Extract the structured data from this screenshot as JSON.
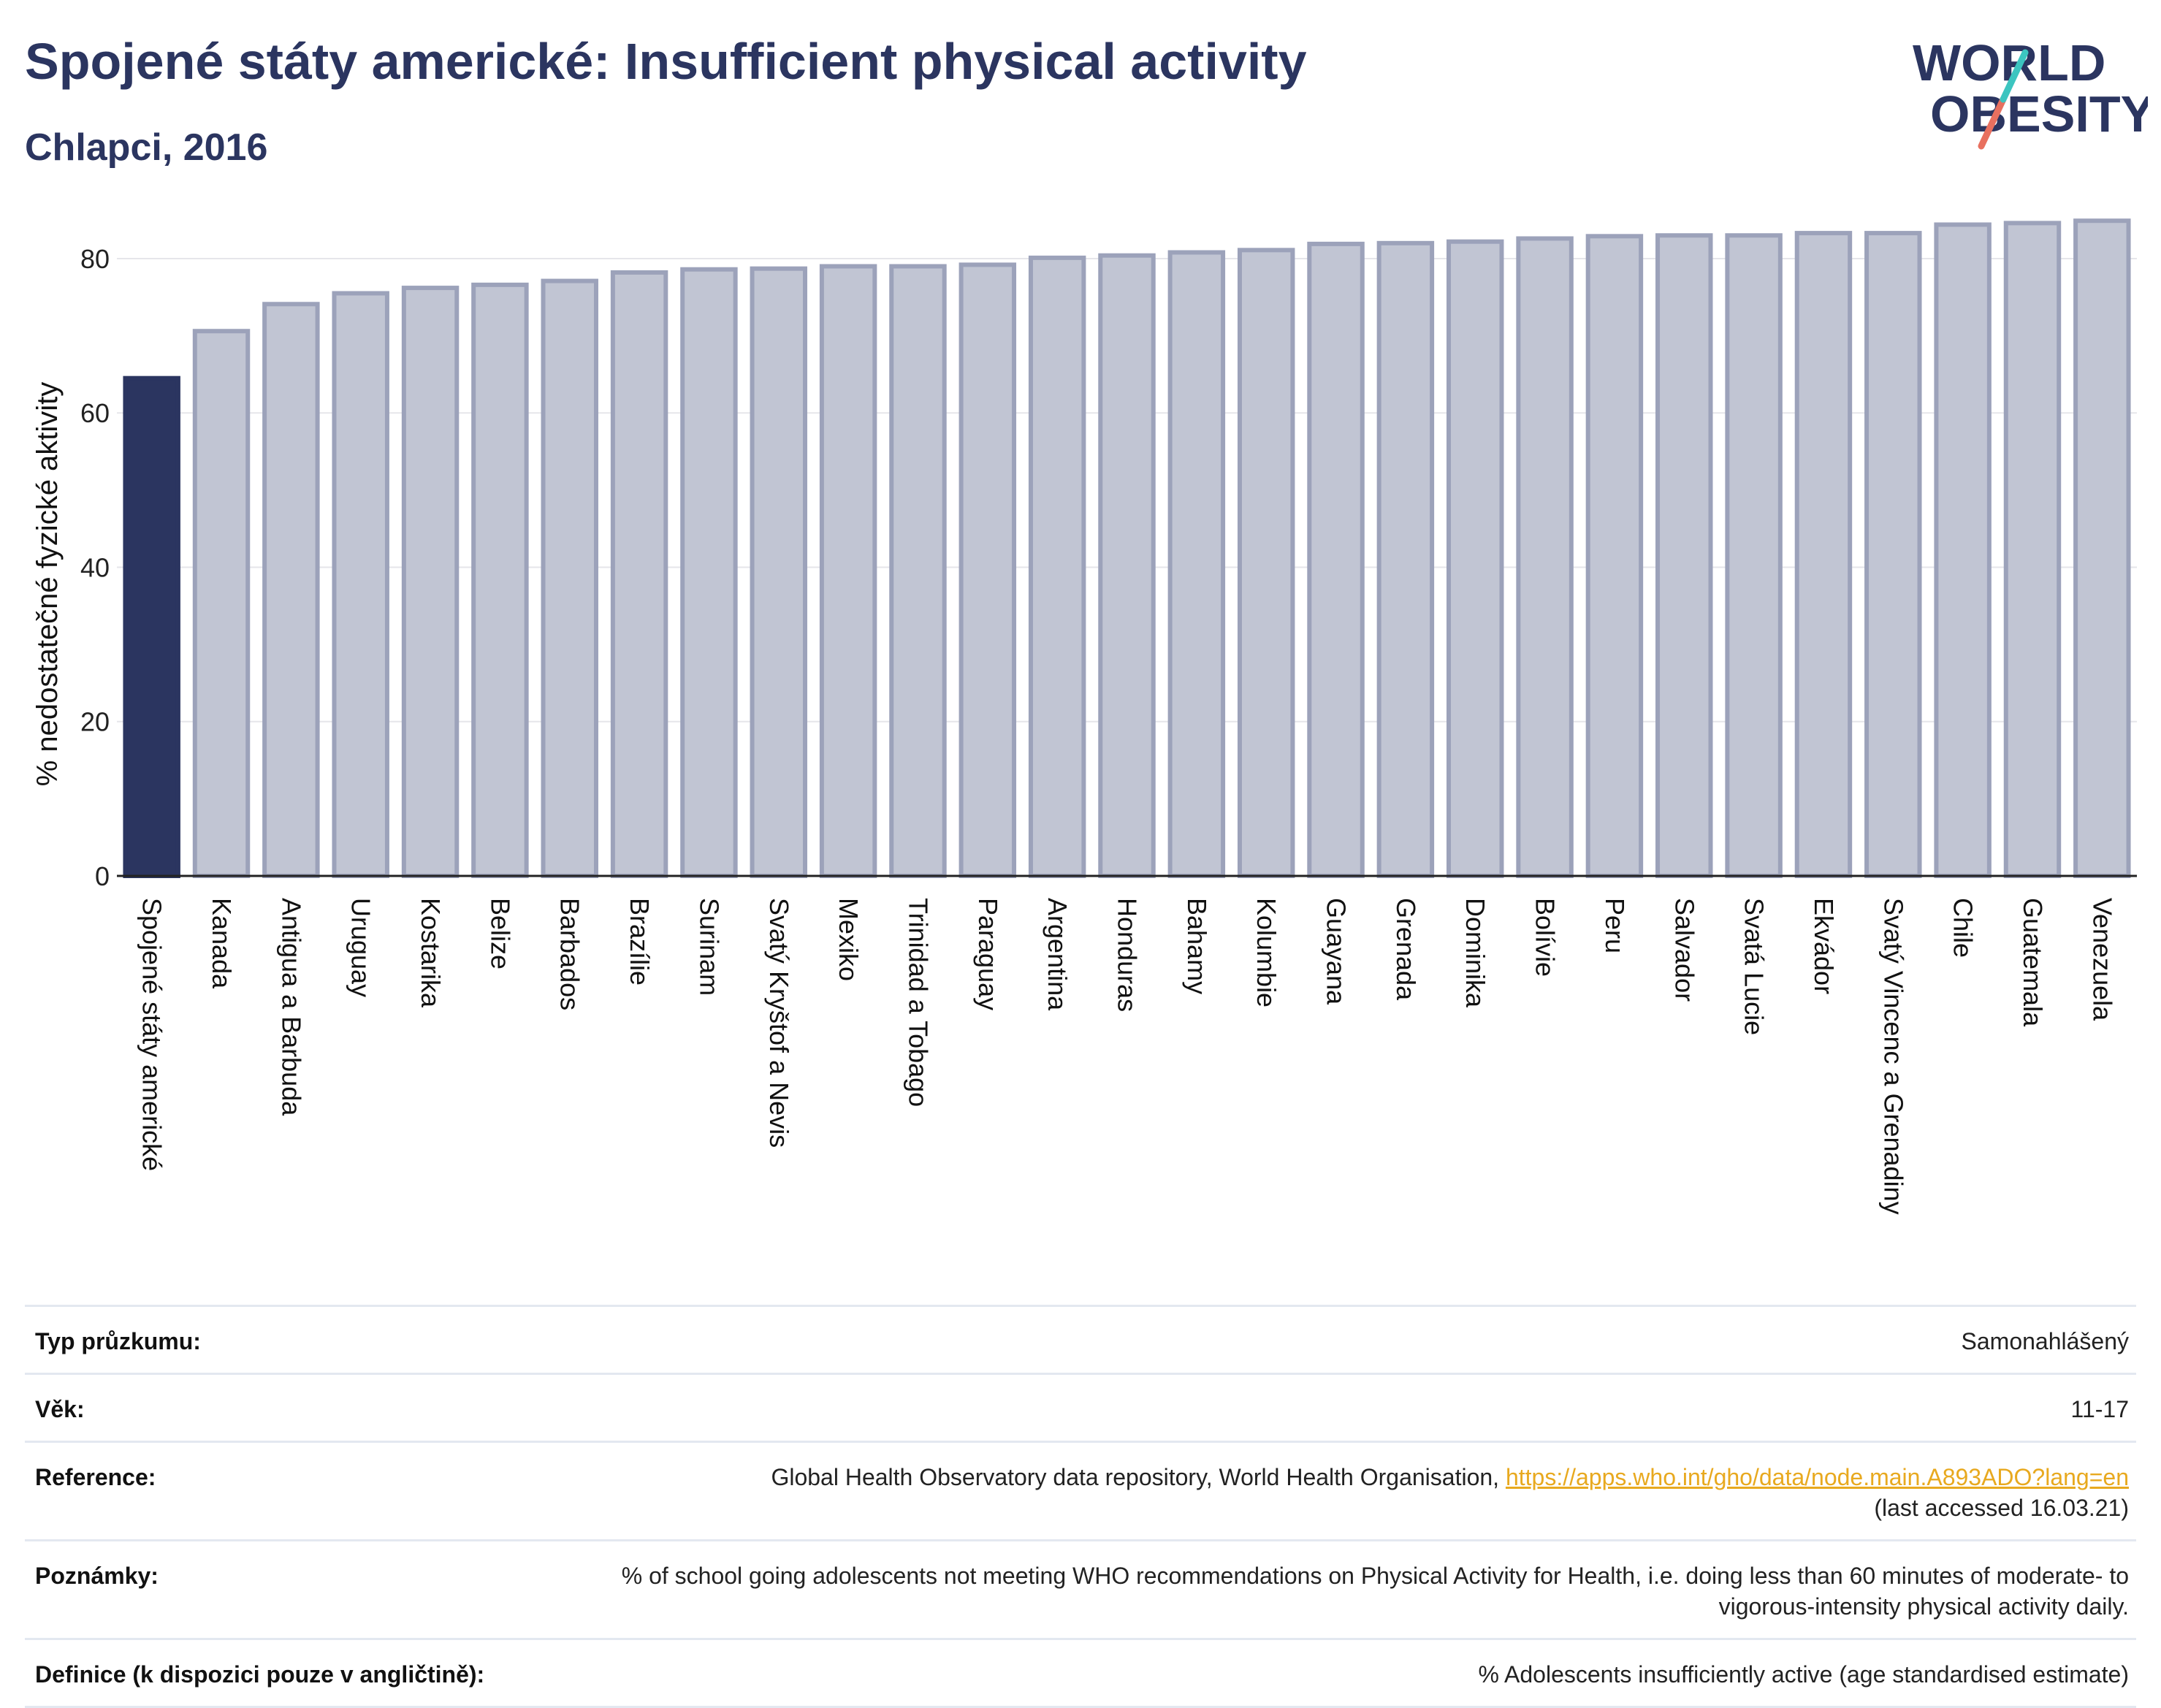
{
  "header": {
    "title": "Spojené státy americké: Insufficient physical activity",
    "subtitle": "Chlapci, 2016"
  },
  "logo": {
    "line1": "WORLD",
    "line2": "OBESITY",
    "colors": {
      "text": "#2b3560",
      "slash_top": "#3cc5c0",
      "slash_bottom": "#e8705f"
    }
  },
  "colors": {
    "highlight_bar": "#2b3560",
    "other_bar": "#c1c5d3",
    "other_bar_border": "#9ca2ba",
    "axis": "#222222",
    "grid": "#e6e6ea"
  },
  "chart_data": {
    "type": "bar",
    "ylabel": "% nedostatečné fyzické aktivity",
    "ylim": [
      0,
      87
    ],
    "yticks": [
      0,
      20,
      40,
      60,
      80
    ],
    "grid": true,
    "highlight": "Spojené státy americké",
    "categories": [
      "Spojené státy americké",
      "Kanada",
      "Antigua a Barbuda",
      "Uruguay",
      "Kostarika",
      "Belize",
      "Barbados",
      "Brazílie",
      "Surinam",
      "Svatý Kryštof a Nevis",
      "Mexiko",
      "Trinidad a Tobago",
      "Paraguay",
      "Argentina",
      "Honduras",
      "Bahamy",
      "Kolumbie",
      "Guayana",
      "Grenada",
      "Dominika",
      "Bolívie",
      "Peru",
      "Salvador",
      "Svatá Lucie",
      "Ekvádor",
      "Svatý Vincenc a Grenadiny",
      "Chile",
      "Guatemala",
      "Venezuela"
    ],
    "values": [
      64.5,
      70.6,
      74.1,
      75.5,
      76.2,
      76.6,
      77.1,
      78.2,
      78.6,
      78.7,
      79.0,
      79.0,
      79.2,
      80.1,
      80.4,
      80.8,
      81.1,
      81.9,
      82.0,
      82.2,
      82.6,
      82.9,
      83.0,
      83.0,
      83.3,
      83.3,
      84.4,
      84.6,
      84.9
    ]
  },
  "info": [
    {
      "label": "Typ průzkumu:",
      "value": "Samonahlášený"
    },
    {
      "label": "Věk:",
      "value": "11-17"
    },
    {
      "label": "Reference:",
      "value": "Global Health Observatory data repository, World Health Organisation, ",
      "link": "https://apps.who.int/gho/data/node.main.A893ADO?lang=en",
      "value2": "(last accessed 16.03.21)"
    },
    {
      "label": "Poznámky:",
      "value": "% of school going adolescents not meeting WHO recommendations on Physical Activity for Health, i.e. doing less than 60 minutes of moderate- to vigorous-intensity physical activity daily."
    },
    {
      "label": "Definice (k dispozici pouze v angličtině):",
      "value": "% Adolescents insufficiently active (age standardised estimate)"
    }
  ]
}
